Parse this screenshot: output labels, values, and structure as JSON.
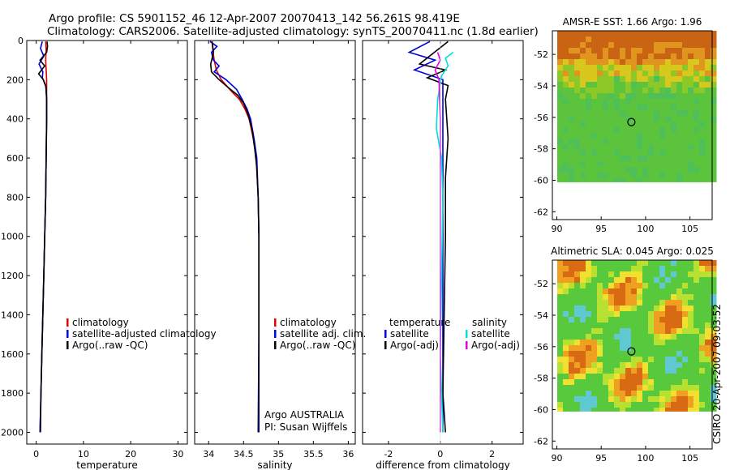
{
  "header": {
    "line1": "Argo profile: CS 5901152_46 12-Apr-2007 20070413_142 56.261S 98.419E",
    "line2": "Climatology: CARS2006. Satellite-adjusted climatology: synTS_20070411.nc (1.8d earlier)"
  },
  "footer_stamp": "CSIRO 20-Apr-2007 09:03:52",
  "colors": {
    "climatology": "#e00000",
    "satellite": "#0000dd",
    "argo": "#000000",
    "satellite_diff": "#00e0e0",
    "argo_adj": "#e000e0"
  },
  "chart_data": [
    {
      "type": "line",
      "id": "temperature",
      "xlabel": "temperature",
      "ylabel": "",
      "xlim": [
        -2,
        32
      ],
      "ylim": [
        2060,
        0
      ],
      "xticks": [
        0,
        10,
        20,
        30
      ],
      "yticks": [
        0,
        200,
        400,
        600,
        800,
        1000,
        1200,
        1400,
        1600,
        1800,
        2000
      ],
      "legend": {
        "placement": "lower-left",
        "entries": [
          "climatology",
          "satellite-adjusted climatology",
          "Argo(..raw -QC)"
        ]
      },
      "series": [
        {
          "name": "climatology",
          "color": "#e00000",
          "points": [
            [
              2.0,
              5
            ],
            [
              2.1,
              50
            ],
            [
              2.0,
              100
            ],
            [
              2.1,
              150
            ],
            [
              2.2,
              200
            ],
            [
              2.2,
              300
            ],
            [
              2.2,
              400
            ],
            [
              2.1,
              600
            ],
            [
              2.0,
              800
            ],
            [
              1.8,
              1000
            ],
            [
              1.6,
              1200
            ],
            [
              1.4,
              1400
            ],
            [
              1.2,
              1600
            ],
            [
              1.0,
              1800
            ],
            [
              0.8,
              2000
            ]
          ]
        },
        {
          "name": "satellite-adjusted climatology",
          "color": "#0000dd",
          "points": [
            [
              1.3,
              5
            ],
            [
              0.9,
              40
            ],
            [
              1.6,
              80
            ],
            [
              0.6,
              120
            ],
            [
              1.4,
              160
            ],
            [
              1.3,
              190
            ],
            [
              2.0,
              230
            ],
            [
              2.2,
              300
            ],
            [
              2.2,
              400
            ],
            [
              2.1,
              600
            ],
            [
              2.0,
              800
            ],
            [
              1.8,
              1000
            ],
            [
              1.6,
              1200
            ],
            [
              1.4,
              1400
            ],
            [
              1.2,
              1600
            ],
            [
              1.0,
              1800
            ],
            [
              0.8,
              2000
            ]
          ]
        },
        {
          "name": "Argo(..raw -QC)",
          "color": "#000000",
          "points": [
            [
              2.3,
              5
            ],
            [
              2.4,
              30
            ],
            [
              2.2,
              60
            ],
            [
              0.8,
              100
            ],
            [
              1.8,
              130
            ],
            [
              0.5,
              170
            ],
            [
              1.5,
              200
            ],
            [
              2.1,
              240
            ],
            [
              2.2,
              300
            ],
            [
              2.2,
              400
            ],
            [
              2.1,
              600
            ],
            [
              2.0,
              800
            ],
            [
              1.8,
              1000
            ],
            [
              1.6,
              1200
            ],
            [
              1.4,
              1400
            ],
            [
              1.2,
              1600
            ],
            [
              1.0,
              1800
            ],
            [
              0.9,
              2000
            ]
          ]
        }
      ]
    },
    {
      "type": "line",
      "id": "salinity",
      "xlabel": "salinity",
      "xlim": [
        33.8,
        36.1
      ],
      "ylim": [
        2060,
        0
      ],
      "xticks": [
        34,
        34.5,
        35,
        35.5,
        36
      ],
      "yticks": [
        0,
        200,
        400,
        600,
        800,
        1000,
        1200,
        1400,
        1600,
        1800,
        2000
      ],
      "legend": {
        "placement": "lower-right",
        "entries": [
          "climatology",
          "satellite adj. clim.",
          "Argo(..raw -QC)"
        ]
      },
      "annotation": {
        "line1": "Argo AUSTRALIA",
        "line2": "PI: Susan Wijffels"
      },
      "series": [
        {
          "name": "climatology",
          "color": "#e00000",
          "points": [
            [
              34.05,
              5
            ],
            [
              34.06,
              50
            ],
            [
              34.08,
              100
            ],
            [
              34.11,
              150
            ],
            [
              34.18,
              200
            ],
            [
              34.33,
              260
            ],
            [
              34.44,
              300
            ],
            [
              34.52,
              350
            ],
            [
              34.58,
              400
            ],
            [
              34.64,
              500
            ],
            [
              34.68,
              600
            ],
            [
              34.71,
              800
            ],
            [
              34.72,
              1000
            ],
            [
              34.72,
              1200
            ],
            [
              34.72,
              1500
            ],
            [
              34.72,
              2000
            ]
          ]
        },
        {
          "name": "satellite adj. clim.",
          "color": "#0000dd",
          "points": [
            [
              34.02,
              5
            ],
            [
              34.12,
              30
            ],
            [
              34.04,
              60
            ],
            [
              34.07,
              100
            ],
            [
              34.15,
              130
            ],
            [
              34.08,
              160
            ],
            [
              34.25,
              200
            ],
            [
              34.4,
              250
            ],
            [
              34.48,
              300
            ],
            [
              34.55,
              350
            ],
            [
              34.6,
              400
            ],
            [
              34.65,
              500
            ],
            [
              34.69,
              600
            ],
            [
              34.71,
              800
            ],
            [
              34.72,
              1000
            ],
            [
              34.72,
              1200
            ],
            [
              34.72,
              1500
            ],
            [
              34.72,
              2000
            ]
          ]
        },
        {
          "name": "Argo(..raw -QC)",
          "color": "#000000",
          "points": [
            [
              34.05,
              5
            ],
            [
              34.07,
              60
            ],
            [
              34.03,
              120
            ],
            [
              34.04,
              160
            ],
            [
              34.15,
              200
            ],
            [
              34.28,
              240
            ],
            [
              34.42,
              280
            ],
            [
              34.5,
              320
            ],
            [
              34.56,
              370
            ],
            [
              34.62,
              450
            ],
            [
              34.66,
              550
            ],
            [
              34.69,
              650
            ],
            [
              34.71,
              800
            ],
            [
              34.72,
              1000
            ],
            [
              34.72,
              1200
            ],
            [
              34.72,
              1500
            ],
            [
              34.71,
              2000
            ]
          ]
        }
      ]
    },
    {
      "type": "line",
      "id": "difference",
      "xlabel": "difference from climatology",
      "xlim": [
        -3,
        3.2
      ],
      "ylim": [
        2060,
        0
      ],
      "xticks": [
        -2,
        0,
        2
      ],
      "yticks": [
        0,
        200,
        400,
        600,
        800,
        1000,
        1200,
        1400,
        1600,
        1800,
        2000
      ],
      "legend": {
        "placement": "lower",
        "temperature_header": "temperature",
        "salinity_header": "salinity",
        "entries": [
          "satellite",
          "Argo(-adj)",
          "satellite",
          "Argo(-adj)"
        ]
      },
      "series": [
        {
          "name": "temperature satellite",
          "color": "#0000dd",
          "points": [
            [
              -0.4,
              5
            ],
            [
              -1.2,
              60
            ],
            [
              -0.2,
              100
            ],
            [
              -1.0,
              150
            ],
            [
              0.1,
              200
            ],
            [
              0.1,
              400
            ],
            [
              0.1,
              800
            ],
            [
              0.1,
              1200
            ],
            [
              0.1,
              1600
            ],
            [
              0.1,
              2000
            ]
          ]
        },
        {
          "name": "temperature Argo(-adj)",
          "color": "#000000",
          "points": [
            [
              0.3,
              5
            ],
            [
              -0.8,
              120
            ],
            [
              0.2,
              150
            ],
            [
              -0.5,
              190
            ],
            [
              0.3,
              230
            ],
            [
              0.2,
              300
            ],
            [
              0.3,
              500
            ],
            [
              0.2,
              700
            ],
            [
              0.2,
              1000
            ],
            [
              0.15,
              1400
            ],
            [
              0.1,
              1800
            ],
            [
              0.2,
              2000
            ]
          ]
        },
        {
          "name": "salinity satellite",
          "color": "#00e0e0",
          "points": [
            [
              0.5,
              60
            ],
            [
              0.2,
              90
            ],
            [
              0.3,
              130
            ],
            [
              0.05,
              180
            ],
            [
              -0.1,
              300
            ],
            [
              -0.15,
              450
            ],
            [
              0.05,
              600
            ],
            [
              0.1,
              800
            ],
            [
              0.05,
              1200
            ],
            [
              0.0,
              1600
            ],
            [
              0.1,
              2000
            ]
          ]
        },
        {
          "name": "salinity Argo(-adj)",
          "color": "#e000e0",
          "points": [
            [
              -0.1,
              60
            ],
            [
              0.0,
              100
            ],
            [
              -0.2,
              150
            ],
            [
              -0.05,
              200
            ],
            [
              0.0,
              400
            ],
            [
              0.0,
              800
            ],
            [
              0.0,
              1200
            ],
            [
              0.0,
              2000
            ]
          ]
        }
      ]
    },
    {
      "type": "heatmap",
      "id": "sst-map",
      "title": "AMSR-E SST: 1.66 Argo: 1.96",
      "xlim": [
        89.5,
        107.5
      ],
      "ylim": [
        -62.5,
        -50.5
      ],
      "xticks": [
        90,
        95,
        100,
        105
      ],
      "yticks": [
        -52,
        -54,
        -56,
        -58,
        -60,
        -62
      ],
      "marker": {
        "lon": 98.4,
        "lat": -56.3
      }
    },
    {
      "type": "heatmap",
      "id": "sla-map",
      "title": "Altimetric SLA: 0.045 Argo: 0.025",
      "xlim": [
        89.5,
        107.5
      ],
      "ylim": [
        -62.5,
        -50.5
      ],
      "xticks": [
        90,
        95,
        100,
        105
      ],
      "yticks": [
        -52,
        -54,
        -56,
        -58,
        -60,
        -62
      ],
      "marker": {
        "lon": 98.4,
        "lat": -56.3
      }
    }
  ]
}
